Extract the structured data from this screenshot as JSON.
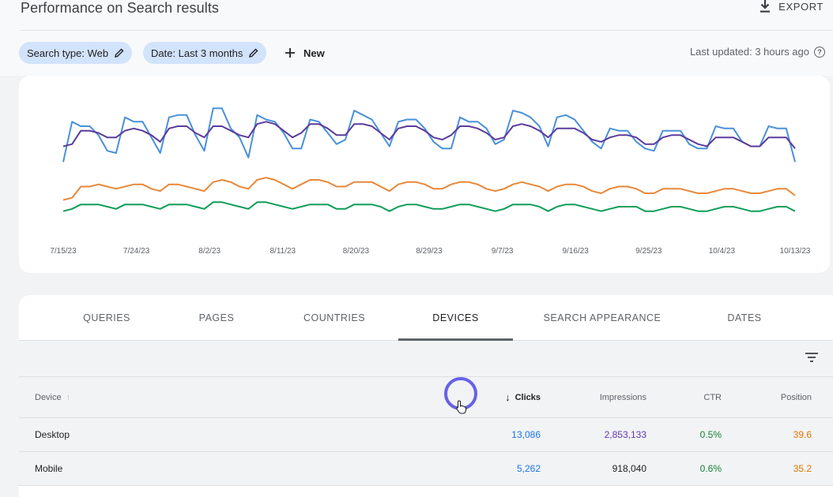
{
  "header": {
    "title": "Performance on Search results",
    "export_label": "EXPORT"
  },
  "filters": {
    "search_type": "Search type: Web",
    "date": "Date: Last 3 months",
    "new_label": "New",
    "last_updated": "Last updated: 3 hours ago"
  },
  "colors": {
    "clicks": "#4a90d9",
    "impressions": "#5b3c9c",
    "ctr": "#0f9d58",
    "position": "#e8883a"
  },
  "chart_data": {
    "type": "line",
    "x_ticks": [
      "7/15/23",
      "7/24/23",
      "8/2/23",
      "8/11/23",
      "8/20/23",
      "8/29/23",
      "9/7/23",
      "9/16/23",
      "9/25/23",
      "10/4/23",
      "10/13/23"
    ],
    "series": [
      {
        "name": "Clicks",
        "values": [
          5.2,
          7.0,
          6.8,
          6.8,
          6.4,
          5.7,
          5.6,
          7.2,
          7.0,
          7.0,
          6.3,
          5.6,
          7.2,
          7.3,
          7.3,
          6.4,
          5.7,
          7.6,
          7.6,
          6.7,
          6.3,
          5.4,
          7.3,
          7.1,
          7.0,
          6.5,
          5.8,
          5.8,
          7.1,
          7.0,
          6.5,
          6.0,
          6.2,
          7.5,
          7.3,
          7.1,
          6.5,
          5.9,
          7.0,
          7.1,
          7.1,
          6.7,
          6.1,
          5.8,
          5.8,
          7.2,
          7.0,
          7.0,
          6.7,
          6.0,
          6.2,
          7.5,
          7.4,
          7.2,
          6.8,
          5.9,
          7.2,
          7.3,
          7.1,
          6.6,
          6.1,
          5.8,
          6.7,
          6.6,
          6.6,
          6.1,
          5.8,
          5.7,
          6.6,
          6.6,
          6.6,
          6.0,
          5.8,
          5.8,
          6.8,
          6.7,
          6.7,
          6.1,
          5.9,
          5.9,
          6.8,
          6.7,
          6.7,
          5.2
        ]
      },
      {
        "name": "Impressions",
        "values": [
          5.9,
          6.0,
          6.6,
          6.6,
          6.5,
          6.3,
          6.3,
          6.6,
          6.7,
          6.6,
          6.4,
          6.1,
          6.7,
          6.8,
          6.8,
          6.5,
          6.3,
          6.8,
          6.8,
          6.6,
          6.4,
          6.3,
          6.9,
          7.0,
          6.9,
          6.6,
          6.3,
          6.5,
          6.9,
          6.9,
          6.7,
          6.4,
          6.4,
          6.9,
          6.9,
          6.8,
          6.5,
          6.2,
          6.7,
          6.8,
          6.8,
          6.6,
          6.3,
          6.2,
          6.4,
          6.8,
          6.8,
          6.7,
          6.5,
          6.2,
          6.3,
          6.8,
          6.9,
          6.8,
          6.6,
          6.3,
          6.7,
          6.7,
          6.7,
          6.5,
          6.2,
          6.1,
          6.3,
          6.4,
          6.4,
          6.3,
          6.0,
          6.0,
          6.3,
          6.4,
          6.4,
          6.2,
          6.0,
          5.9,
          6.3,
          6.3,
          6.3,
          6.1,
          5.9,
          5.9,
          6.3,
          6.3,
          6.3,
          5.8
        ]
      },
      {
        "name": "Position",
        "values": [
          3.5,
          3.6,
          4.1,
          4.1,
          4.2,
          4.1,
          4.0,
          4.1,
          4.2,
          4.2,
          4.0,
          3.9,
          4.2,
          4.2,
          4.1,
          4.0,
          3.9,
          4.3,
          4.4,
          4.3,
          4.1,
          4.0,
          4.4,
          4.5,
          4.4,
          4.2,
          4.0,
          4.2,
          4.4,
          4.4,
          4.3,
          4.1,
          4.1,
          4.3,
          4.3,
          4.3,
          4.1,
          3.9,
          4.2,
          4.3,
          4.3,
          4.2,
          4.0,
          4.0,
          4.2,
          4.3,
          4.3,
          4.2,
          4.0,
          3.9,
          4.0,
          4.2,
          4.3,
          4.2,
          4.1,
          3.9,
          4.1,
          4.2,
          4.2,
          4.1,
          3.9,
          3.8,
          4.0,
          4.1,
          4.1,
          4.0,
          3.8,
          3.8,
          4.0,
          4.0,
          4.0,
          3.9,
          3.8,
          3.8,
          3.9,
          4.0,
          4.0,
          3.9,
          3.8,
          3.8,
          3.9,
          4.0,
          4.0,
          3.7
        ]
      },
      {
        "name": "CTR",
        "values": [
          3.0,
          3.1,
          3.3,
          3.3,
          3.3,
          3.2,
          3.1,
          3.3,
          3.3,
          3.3,
          3.2,
          3.1,
          3.3,
          3.3,
          3.3,
          3.2,
          3.1,
          3.4,
          3.4,
          3.3,
          3.2,
          3.1,
          3.4,
          3.4,
          3.3,
          3.2,
          3.1,
          3.2,
          3.3,
          3.3,
          3.3,
          3.1,
          3.1,
          3.3,
          3.3,
          3.3,
          3.2,
          3.0,
          3.2,
          3.3,
          3.3,
          3.2,
          3.1,
          3.1,
          3.2,
          3.3,
          3.3,
          3.2,
          3.1,
          3.0,
          3.1,
          3.3,
          3.3,
          3.3,
          3.2,
          3.0,
          3.2,
          3.3,
          3.3,
          3.2,
          3.1,
          3.0,
          3.1,
          3.2,
          3.2,
          3.2,
          3.0,
          3.0,
          3.1,
          3.2,
          3.2,
          3.1,
          3.0,
          3.0,
          3.1,
          3.2,
          3.2,
          3.1,
          3.0,
          3.0,
          3.1,
          3.2,
          3.2,
          3.0
        ]
      }
    ],
    "ylim": [
      2,
      8
    ],
    "grid": false,
    "legend": "none"
  },
  "tabs": [
    "QUERIES",
    "PAGES",
    "COUNTRIES",
    "DEVICES",
    "SEARCH APPEARANCE",
    "DATES"
  ],
  "active_tab": "DEVICES",
  "table": {
    "headers": {
      "device": "Device",
      "clicks": "Clicks",
      "impressions": "Impressions",
      "ctr": "CTR",
      "position": "Position"
    },
    "rows": [
      {
        "device": "Desktop",
        "clicks": "13,086",
        "impressions": "2,853,133",
        "ctr": "0.5%",
        "position": "39.6"
      },
      {
        "device": "Mobile",
        "clicks": "5,262",
        "impressions": "918,040",
        "ctr": "0.6%",
        "position": "35.2"
      }
    ]
  }
}
